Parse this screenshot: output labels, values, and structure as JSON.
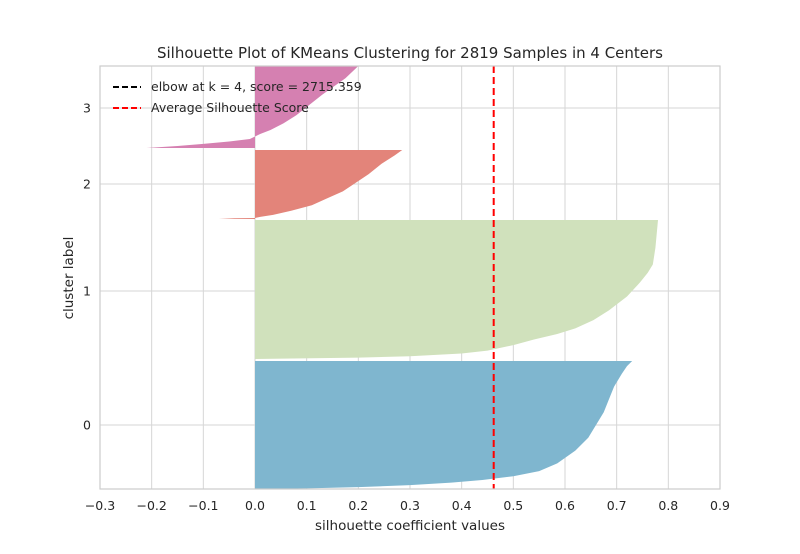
{
  "chart_data": {
    "type": "silhouette",
    "title": "Silhouette Plot of KMeans Clustering for 2819 Samples in 4 Centers",
    "xlabel": "silhouette coefficient values",
    "ylabel": "cluster label",
    "xlim": [
      -0.3,
      0.9
    ],
    "x_ticks": [
      "−0.3",
      "−0.2",
      "−0.1",
      "0.0",
      "0.1",
      "0.2",
      "0.3",
      "0.4",
      "0.5",
      "0.6",
      "0.7",
      "0.8",
      "0.9"
    ],
    "x_tick_values": [
      -0.3,
      -0.2,
      -0.1,
      0.0,
      0.1,
      0.2,
      0.3,
      0.4,
      0.5,
      0.6,
      0.7,
      0.8,
      0.9
    ],
    "y_ticks": [
      "0",
      "1",
      "2",
      "3"
    ],
    "grid": true,
    "legend_position": "top-left",
    "legend": [
      {
        "label": "elbow at k = 4, score = 2715.359",
        "style": "dashed",
        "color": "#000000"
      },
      {
        "label": "Average Silhouette Score",
        "style": "dashed",
        "color": "#ff0000"
      }
    ],
    "average_silhouette_score": 0.462,
    "clusters": [
      {
        "label": "0",
        "color": "#7fb6cf",
        "size": 1176,
        "max": 0.73,
        "min": 0.0,
        "profile": [
          [
            0.0,
            0.73
          ],
          [
            0.04,
            0.72
          ],
          [
            0.1,
            0.71
          ],
          [
            0.2,
            0.695
          ],
          [
            0.3,
            0.685
          ],
          [
            0.4,
            0.675
          ],
          [
            0.5,
            0.66
          ],
          [
            0.6,
            0.645
          ],
          [
            0.7,
            0.62
          ],
          [
            0.8,
            0.585
          ],
          [
            0.86,
            0.55
          ],
          [
            0.9,
            0.5
          ],
          [
            0.93,
            0.44
          ],
          [
            0.95,
            0.38
          ],
          [
            0.97,
            0.3
          ],
          [
            0.985,
            0.2
          ],
          [
            0.995,
            0.1
          ],
          [
            1.0,
            0.0
          ]
        ]
      },
      {
        "label": "1",
        "color": "#d0e1bc",
        "size": 1155,
        "max": 0.78,
        "min": 0.0,
        "profile": [
          [
            0.0,
            0.78
          ],
          [
            0.2,
            0.775
          ],
          [
            0.32,
            0.77
          ],
          [
            0.38,
            0.76
          ],
          [
            0.45,
            0.745
          ],
          [
            0.55,
            0.72
          ],
          [
            0.65,
            0.685
          ],
          [
            0.72,
            0.655
          ],
          [
            0.78,
            0.62
          ],
          [
            0.82,
            0.585
          ],
          [
            0.86,
            0.54
          ],
          [
            0.9,
            0.5
          ],
          [
            0.94,
            0.45
          ],
          [
            0.96,
            0.4
          ],
          [
            0.98,
            0.3
          ],
          [
            0.99,
            0.2
          ],
          [
            1.0,
            0.0
          ]
        ]
      },
      {
        "label": "2",
        "color": "#e3847a",
        "size": 239,
        "max": 0.285,
        "min": -0.07,
        "profile": [
          [
            0.0,
            0.285
          ],
          [
            0.08,
            0.27
          ],
          [
            0.2,
            0.245
          ],
          [
            0.35,
            0.22
          ],
          [
            0.5,
            0.19
          ],
          [
            0.6,
            0.17
          ],
          [
            0.7,
            0.14
          ],
          [
            0.8,
            0.11
          ],
          [
            0.88,
            0.07
          ],
          [
            0.94,
            0.035
          ],
          [
            0.97,
            0.01
          ],
          [
            0.985,
            0.0
          ],
          [
            0.99,
            -0.04
          ],
          [
            1.0,
            -0.07
          ]
        ]
      },
      {
        "label": "3",
        "color": "#d580b1",
        "size": 249,
        "max": 0.2,
        "min": -0.21,
        "profile": [
          [
            0.0,
            0.2
          ],
          [
            0.15,
            0.175
          ],
          [
            0.35,
            0.13
          ],
          [
            0.5,
            0.1
          ],
          [
            0.6,
            0.08
          ],
          [
            0.7,
            0.055
          ],
          [
            0.78,
            0.03
          ],
          [
            0.83,
            0.01
          ],
          [
            0.86,
            0.0
          ],
          [
            0.89,
            -0.01
          ],
          [
            0.92,
            -0.05
          ],
          [
            0.95,
            -0.1
          ],
          [
            0.975,
            -0.15
          ],
          [
            1.0,
            -0.21
          ]
        ]
      }
    ]
  }
}
